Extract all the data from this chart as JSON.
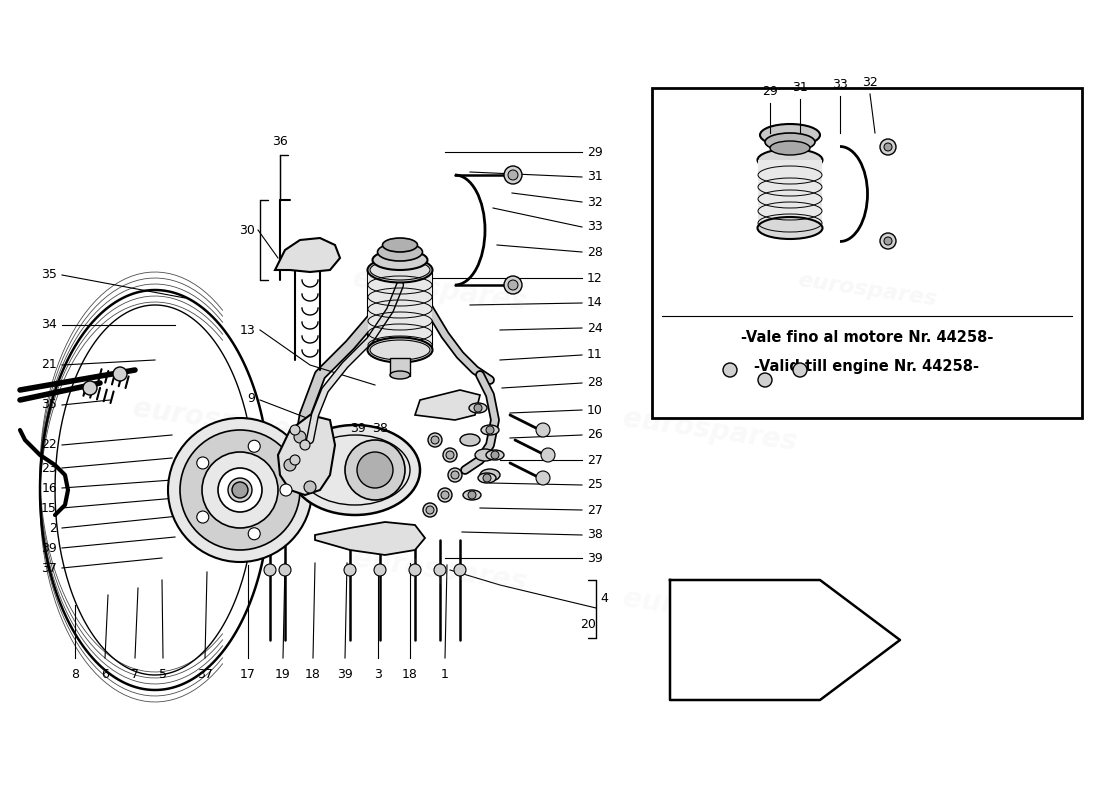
{
  "bg_color": "#ffffff",
  "line_color": "#000000",
  "watermark_color": "#c8c8d4",
  "note_text_it": "-Vale fino al motore Nr. 44258-",
  "note_text_en": "-Valid till engine Nr. 44258-",
  "note_fontsize": 10.5,
  "callout_fontsize": 9,
  "fig_width": 11.0,
  "fig_height": 8.0,
  "dpi": 100
}
